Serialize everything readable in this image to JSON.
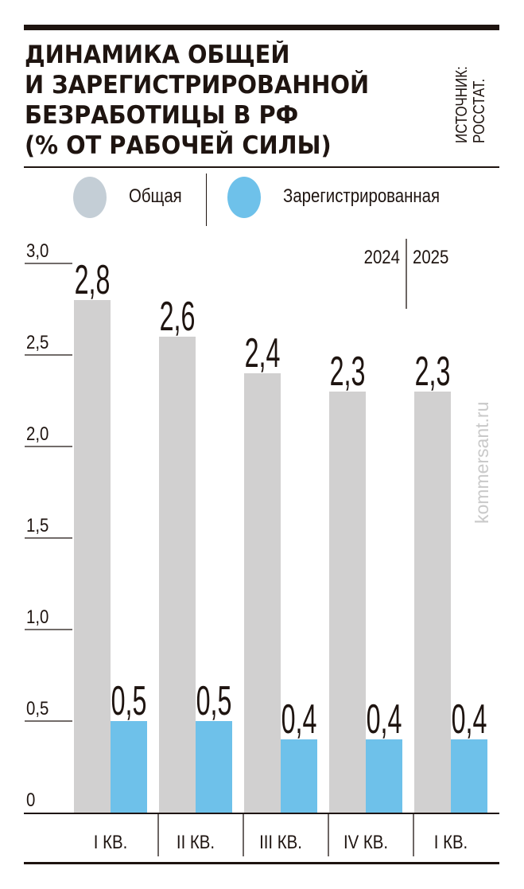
{
  "chart_data": {
    "type": "bar",
    "title": [
      "ДИНАМИКА ОБЩЕЙ",
      "И ЗАРЕГИСТРИРОВАННОЙ",
      "БЕЗРАБОТИЦЫ В РФ",
      "(% ОТ РАБОЧЕЙ СИЛЫ)"
    ],
    "source": [
      "ИСТОЧНИК:",
      "РОССТАТ."
    ],
    "categories": [
      "I КВ.",
      "II КВ.",
      "III КВ.",
      "IV КВ.",
      "I КВ."
    ],
    "year_labels": [
      "2024",
      "2025"
    ],
    "series": [
      {
        "name": "Общая",
        "color": "#d1d0d0",
        "legend_color": "#c4ced6",
        "values": [
          2.8,
          2.6,
          2.4,
          2.3,
          2.3
        ],
        "labels": [
          "2,8",
          "2,6",
          "2,4",
          "2,3",
          "2,3"
        ]
      },
      {
        "name": "Зарегистрированная",
        "color": "#6ec1ea",
        "legend_color": "#6ec1ea",
        "values": [
          0.5,
          0.5,
          0.4,
          0.4,
          0.4
        ],
        "labels": [
          "0,5",
          "0,5",
          "0,4",
          "0,4",
          "0,4"
        ]
      }
    ],
    "yticks": [
      0,
      0.5,
      1.0,
      1.5,
      2.0,
      2.5,
      3.0
    ],
    "ytick_labels": [
      "0",
      "0,5",
      "1,0",
      "1,5",
      "2,0",
      "2,5",
      "3,0"
    ],
    "ylim": [
      0,
      3.0
    ],
    "xlabel": "",
    "ylabel": "",
    "legend_placement": "top"
  },
  "watermark": "kommersant.ru"
}
